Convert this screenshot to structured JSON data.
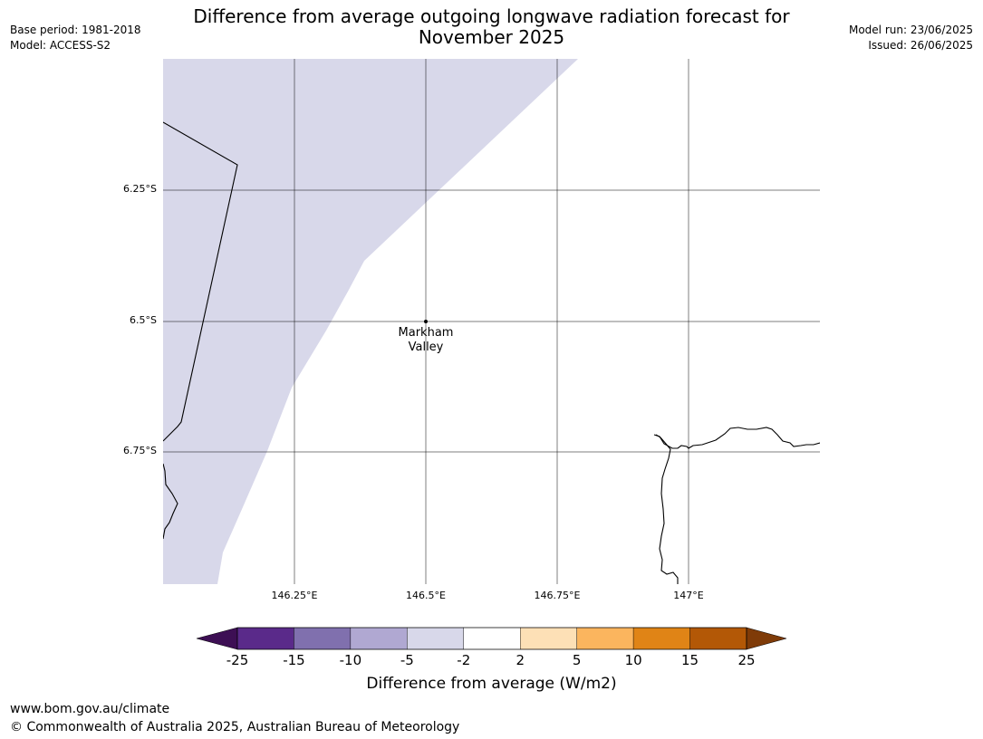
{
  "title_line1": "Difference from average outgoing longwave radiation forecast for",
  "title_line2": "November 2025",
  "base_period": "Base period: 1981-2018",
  "model": "Model: ACCESS-S2",
  "model_run": "Model run: 23/06/2025",
  "issued": "Issued: 26/06/2025",
  "lat_labels": [
    "6.25°S",
    "6.5°S",
    "6.75°S"
  ],
  "lon_labels": [
    "146.25°E",
    "146.5°E",
    "146.75°E",
    "147°E"
  ],
  "place_line1": "Markham",
  "place_line2": "Valley",
  "colorbar": {
    "ticks": [
      "-25",
      "-15",
      "-10",
      "-5",
      "-2",
      "2",
      "5",
      "10",
      "15",
      "25"
    ],
    "colors": [
      "#5a2a8a",
      "#8070ae",
      "#b0a8d2",
      "#d8d8ea",
      "#ffffff",
      "#fde0b6",
      "#fbb55e",
      "#e08416",
      "#b35806"
    ],
    "under_color": "#3d0f54",
    "over_color": "#7f3b08",
    "label": "Difference from average (W/m2)"
  },
  "footer_url": "www.bom.gov.au/climate",
  "footer_copyright": "© Commonwealth of Australia 2025, Australian Bureau of Meteorology"
}
